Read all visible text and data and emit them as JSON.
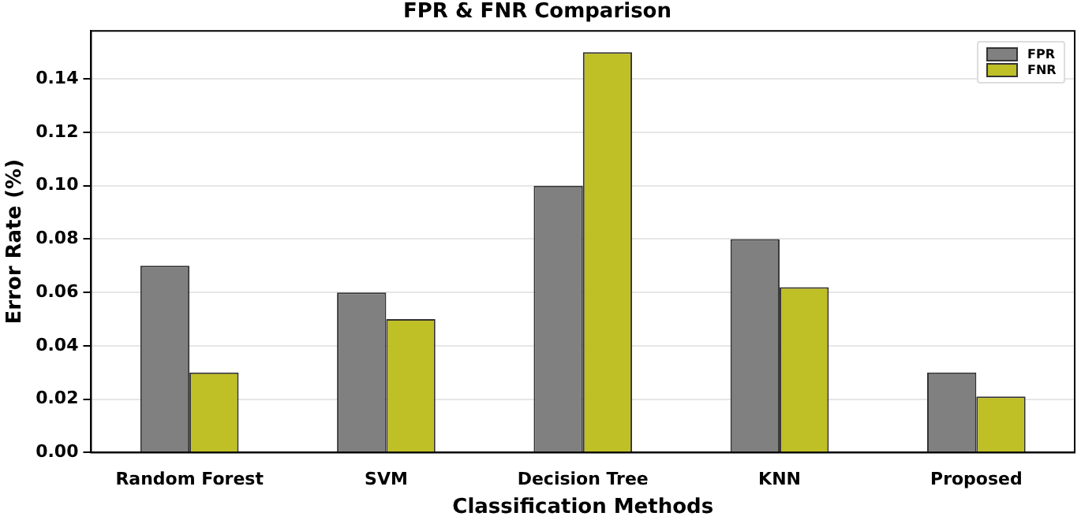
{
  "chart_data": {
    "type": "bar",
    "title": "FPR & FNR Comparison",
    "xlabel": "Classification Methods",
    "ylabel": "Error Rate (%)",
    "categories": [
      "Random Forest",
      "SVM",
      "Decision Tree",
      "KNN",
      "Proposed"
    ],
    "series": [
      {
        "name": "FPR",
        "color": "#808080",
        "values": [
          0.07,
          0.06,
          0.1,
          0.08,
          0.03
        ]
      },
      {
        "name": "FNR",
        "color": "#bfbf26",
        "values": [
          0.03,
          0.05,
          0.15,
          0.062,
          0.021
        ]
      }
    ],
    "ylim": [
      0,
      0.158
    ],
    "yticks": [
      {
        "value": 0,
        "label": "0.00"
      },
      {
        "value": 0.02,
        "label": "0.02"
      },
      {
        "value": 0.04,
        "label": "0.04"
      },
      {
        "value": 0.06,
        "label": "0.06"
      },
      {
        "value": 0.08,
        "label": "0.08"
      },
      {
        "value": 0.1,
        "label": "0.10"
      },
      {
        "value": 0.12,
        "label": "0.12"
      },
      {
        "value": 0.14,
        "label": "0.14"
      }
    ],
    "grid": "y",
    "legend": "top right"
  }
}
